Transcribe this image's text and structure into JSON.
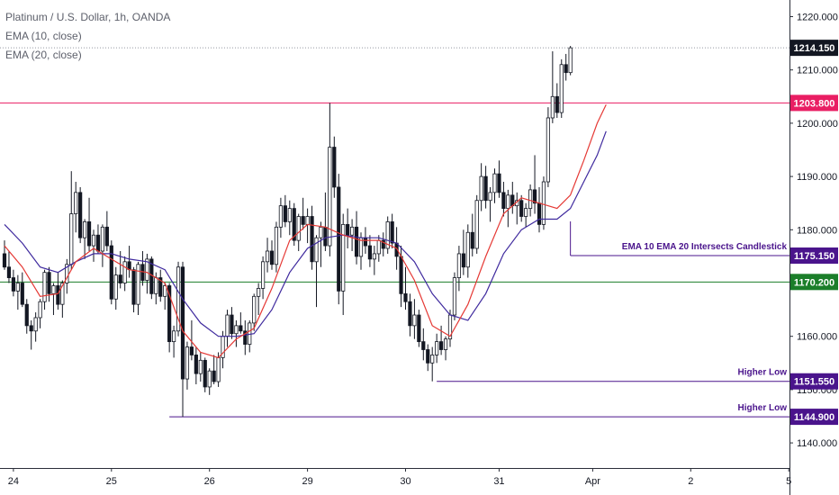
{
  "legend": {
    "symbol": "Platinum / U.S. Dollar, 1h, OANDA",
    "ema10": "EMA (10, close)",
    "ema20": "EMA (20, close)"
  },
  "colors": {
    "up": "#ffffff",
    "down": "#131722",
    "wick": "#131722",
    "ema10": "#e53935",
    "ema20": "#3f2a9e",
    "resistance": "#e91e63",
    "support": "#1b7e2a",
    "annotation": "#4a148c",
    "last": "#131722"
  },
  "chart_data": {
    "type": "candlestick",
    "symbol": "Platinum / U.S. Dollar",
    "interval": "1h",
    "source": "OANDA",
    "ylim": [
      1135,
      1225
    ],
    "y_ticks": [
      1140,
      1150,
      1160,
      1170,
      1180,
      1190,
      1200,
      1210,
      1220
    ],
    "y_tick_labels": [
      "1140.000",
      "1150.000",
      "1160.000",
      "1170.000",
      "1180.000",
      "1190.000",
      "1200.000",
      "1210.000",
      "1220.000"
    ],
    "x_ticks": [
      {
        "label": "24",
        "index": 2
      },
      {
        "label": "25",
        "index": 24
      },
      {
        "label": "26",
        "index": 46
      },
      {
        "label": "29",
        "index": 68
      },
      {
        "label": "30",
        "index": 90
      },
      {
        "label": "31",
        "index": 111
      },
      {
        "label": "Apr",
        "index": 132
      },
      {
        "label": "2",
        "index": 154
      },
      {
        "label": "5",
        "index": 176
      }
    ],
    "x_range": [
      -3,
      183
    ],
    "ohlc": [
      [
        1175.5,
        1178.0,
        1172.5,
        1173.0
      ],
      [
        1173.0,
        1176.0,
        1170.0,
        1171.0
      ],
      [
        1171.0,
        1172.5,
        1167.5,
        1168.5
      ],
      [
        1168.5,
        1171.5,
        1165.0,
        1170.0
      ],
      [
        1170.0,
        1172.0,
        1165.5,
        1166.0
      ],
      [
        1166.0,
        1167.0,
        1160.5,
        1162.0
      ],
      [
        1162.0,
        1163.0,
        1157.5,
        1161.0
      ],
      [
        1161.0,
        1164.5,
        1159.0,
        1163.5
      ],
      [
        1163.5,
        1167.0,
        1161.5,
        1166.5
      ],
      [
        1166.5,
        1172.5,
        1165.0,
        1172.0
      ],
      [
        1172.0,
        1173.0,
        1166.5,
        1168.0
      ],
      [
        1168.0,
        1170.0,
        1164.0,
        1169.5
      ],
      [
        1169.5,
        1172.0,
        1165.0,
        1166.0
      ],
      [
        1166.0,
        1170.5,
        1163.5,
        1170.0
      ],
      [
        1170.0,
        1174.5,
        1168.0,
        1173.5
      ],
      [
        1173.5,
        1191.0,
        1172.5,
        1183.0
      ],
      [
        1183.0,
        1189.0,
        1179.5,
        1187.0
      ],
      [
        1187.0,
        1188.0,
        1177.5,
        1178.5
      ],
      [
        1178.5,
        1182.0,
        1174.5,
        1181.5
      ],
      [
        1181.5,
        1186.0,
        1176.0,
        1177.0
      ],
      [
        1177.0,
        1180.0,
        1174.0,
        1179.0
      ],
      [
        1179.0,
        1181.0,
        1175.5,
        1176.0
      ],
      [
        1176.0,
        1181.0,
        1173.0,
        1180.5
      ],
      [
        1180.5,
        1183.5,
        1176.0,
        1177.0
      ],
      [
        1177.0,
        1178.0,
        1166.0,
        1167.0
      ],
      [
        1167.0,
        1173.0,
        1165.0,
        1171.5
      ],
      [
        1171.5,
        1176.0,
        1169.0,
        1170.0
      ],
      [
        1170.0,
        1175.0,
        1168.5,
        1174.0
      ],
      [
        1174.0,
        1177.0,
        1171.0,
        1172.5
      ],
      [
        1172.5,
        1173.0,
        1164.5,
        1166.0
      ],
      [
        1166.0,
        1174.0,
        1164.0,
        1173.5
      ],
      [
        1173.5,
        1176.0,
        1169.5,
        1170.5
      ],
      [
        1170.5,
        1175.5,
        1168.0,
        1174.5
      ],
      [
        1174.5,
        1175.0,
        1167.0,
        1168.0
      ],
      [
        1168.0,
        1172.0,
        1166.0,
        1171.0
      ],
      [
        1171.0,
        1172.5,
        1166.5,
        1167.5
      ],
      [
        1167.5,
        1170.0,
        1165.0,
        1169.5
      ],
      [
        1169.5,
        1170.0,
        1157.0,
        1159.0
      ],
      [
        1159.0,
        1162.0,
        1156.0,
        1161.0
      ],
      [
        1161.0,
        1174.0,
        1160.0,
        1173.0
      ],
      [
        1173.0,
        1174.0,
        1144.9,
        1152.0
      ],
      [
        1152.0,
        1159.0,
        1150.0,
        1158.0
      ],
      [
        1158.0,
        1163.0,
        1155.5,
        1156.5
      ],
      [
        1156.5,
        1158.0,
        1151.0,
        1153.0
      ],
      [
        1153.0,
        1157.0,
        1151.5,
        1155.5
      ],
      [
        1155.5,
        1156.0,
        1149.5,
        1150.5
      ],
      [
        1150.5,
        1154.0,
        1149.0,
        1153.5
      ],
      [
        1153.5,
        1156.5,
        1151.0,
        1151.5
      ],
      [
        1151.5,
        1157.0,
        1150.5,
        1156.0
      ],
      [
        1156.0,
        1161.0,
        1154.0,
        1160.0
      ],
      [
        1160.0,
        1165.0,
        1158.0,
        1164.0
      ],
      [
        1164.0,
        1165.5,
        1159.5,
        1160.5
      ],
      [
        1160.5,
        1163.0,
        1158.0,
        1162.0
      ],
      [
        1162.0,
        1164.5,
        1160.5,
        1161.0
      ],
      [
        1161.0,
        1163.0,
        1156.5,
        1158.5
      ],
      [
        1158.5,
        1163.0,
        1157.0,
        1162.5
      ],
      [
        1162.5,
        1168.0,
        1161.0,
        1167.5
      ],
      [
        1167.5,
        1170.0,
        1164.0,
        1169.0
      ],
      [
        1169.0,
        1175.0,
        1167.0,
        1174.0
      ],
      [
        1174.0,
        1178.5,
        1172.0,
        1176.0
      ],
      [
        1176.0,
        1178.0,
        1172.5,
        1173.5
      ],
      [
        1173.5,
        1181.5,
        1172.0,
        1180.5
      ],
      [
        1180.5,
        1186.0,
        1178.5,
        1184.5
      ],
      [
        1184.5,
        1186.5,
        1180.5,
        1181.5
      ],
      [
        1181.5,
        1185.5,
        1179.0,
        1184.0
      ],
      [
        1184.0,
        1185.0,
        1177.0,
        1178.0
      ],
      [
        1178.0,
        1183.0,
        1176.0,
        1182.5
      ],
      [
        1182.5,
        1186.0,
        1180.0,
        1181.0
      ],
      [
        1181.0,
        1184.0,
        1177.5,
        1182.5
      ],
      [
        1182.5,
        1184.5,
        1172.5,
        1174.0
      ],
      [
        1174.0,
        1179.0,
        1165.5,
        1178.5
      ],
      [
        1178.5,
        1181.5,
        1173.0,
        1180.5
      ],
      [
        1180.5,
        1187.0,
        1176.0,
        1177.0
      ],
      [
        1177.0,
        1203.8,
        1175.0,
        1195.5
      ],
      [
        1195.5,
        1197.5,
        1186.0,
        1188.0
      ],
      [
        1188.0,
        1190.5,
        1166.0,
        1168.5
      ],
      [
        1168.5,
        1183.0,
        1164.0,
        1181.0
      ],
      [
        1181.0,
        1184.0,
        1176.5,
        1179.0
      ],
      [
        1179.0,
        1182.0,
        1176.0,
        1180.5
      ],
      [
        1180.5,
        1183.5,
        1173.5,
        1175.0
      ],
      [
        1175.0,
        1179.5,
        1172.5,
        1178.5
      ],
      [
        1178.5,
        1180.5,
        1175.5,
        1177.0
      ],
      [
        1177.0,
        1179.0,
        1173.0,
        1174.5
      ],
      [
        1174.5,
        1177.0,
        1171.5,
        1175.5
      ],
      [
        1175.5,
        1179.0,
        1174.0,
        1178.0
      ],
      [
        1178.0,
        1179.5,
        1175.0,
        1176.5
      ],
      [
        1176.5,
        1182.5,
        1175.5,
        1181.5
      ],
      [
        1181.5,
        1183.0,
        1176.5,
        1177.5
      ],
      [
        1177.5,
        1180.5,
        1172.5,
        1175.0
      ],
      [
        1175.0,
        1177.0,
        1165.5,
        1168.0
      ],
      [
        1168.0,
        1173.0,
        1165.0,
        1166.5
      ],
      [
        1166.5,
        1168.0,
        1160.0,
        1162.0
      ],
      [
        1162.0,
        1167.0,
        1159.5,
        1164.0
      ],
      [
        1164.0,
        1165.0,
        1158.0,
        1159.0
      ],
      [
        1159.0,
        1161.5,
        1155.5,
        1157.5
      ],
      [
        1157.5,
        1158.5,
        1153.5,
        1155.0
      ],
      [
        1155.0,
        1158.0,
        1151.55,
        1156.5
      ],
      [
        1156.5,
        1160.5,
        1155.0,
        1159.0
      ],
      [
        1159.0,
        1162.0,
        1156.5,
        1157.5
      ],
      [
        1157.5,
        1160.0,
        1155.5,
        1159.5
      ],
      [
        1159.5,
        1165.0,
        1158.0,
        1164.0
      ],
      [
        1164.0,
        1172.0,
        1163.0,
        1171.0
      ],
      [
        1171.0,
        1177.0,
        1168.5,
        1175.5
      ],
      [
        1175.5,
        1180.0,
        1171.5,
        1173.0
      ],
      [
        1173.0,
        1181.0,
        1171.0,
        1179.5
      ],
      [
        1179.5,
        1183.0,
        1175.0,
        1176.5
      ],
      [
        1176.5,
        1186.5,
        1175.5,
        1185.5
      ],
      [
        1185.5,
        1192.5,
        1183.5,
        1190.0
      ],
      [
        1190.0,
        1192.0,
        1184.0,
        1185.5
      ],
      [
        1185.5,
        1188.0,
        1181.5,
        1187.0
      ],
      [
        1187.0,
        1191.5,
        1185.0,
        1190.5
      ],
      [
        1190.5,
        1193.0,
        1186.0,
        1187.0
      ],
      [
        1187.0,
        1189.0,
        1182.5,
        1184.0
      ],
      [
        1184.0,
        1187.5,
        1180.5,
        1186.5
      ],
      [
        1186.5,
        1189.0,
        1183.0,
        1184.5
      ],
      [
        1184.5,
        1187.0,
        1181.0,
        1185.5
      ],
      [
        1185.5,
        1186.5,
        1181.5,
        1182.5
      ],
      [
        1182.5,
        1185.0,
        1180.5,
        1184.0
      ],
      [
        1184.0,
        1188.5,
        1182.5,
        1187.5
      ],
      [
        1187.5,
        1194.0,
        1183.0,
        1185.0
      ],
      [
        1185.0,
        1188.0,
        1179.5,
        1181.0
      ],
      [
        1181.0,
        1190.0,
        1180.0,
        1189.0
      ],
      [
        1189.0,
        1203.0,
        1188.0,
        1201.0
      ],
      [
        1201.0,
        1213.5,
        1200.0,
        1205.0
      ],
      [
        1205.0,
        1207.5,
        1201.0,
        1202.0
      ],
      [
        1202.0,
        1212.0,
        1201.0,
        1211.0
      ],
      [
        1211.0,
        1213.0,
        1208.0,
        1209.5
      ],
      [
        1209.5,
        1214.5,
        1209.0,
        1214.15
      ]
    ],
    "ema10_points": [
      [
        0,
        1177.0
      ],
      [
        4,
        1173.0
      ],
      [
        8,
        1167.5
      ],
      [
        12,
        1168.0
      ],
      [
        16,
        1174.0
      ],
      [
        20,
        1176.5
      ],
      [
        24,
        1174.5
      ],
      [
        28,
        1172.5
      ],
      [
        32,
        1172.0
      ],
      [
        36,
        1170.0
      ],
      [
        40,
        1161.0
      ],
      [
        44,
        1157.0
      ],
      [
        48,
        1156.0
      ],
      [
        52,
        1159.5
      ],
      [
        56,
        1161.5
      ],
      [
        60,
        1169.0
      ],
      [
        64,
        1178.0
      ],
      [
        68,
        1181.0
      ],
      [
        72,
        1180.5
      ],
      [
        76,
        1179.0
      ],
      [
        80,
        1178.0
      ],
      [
        84,
        1178.0
      ],
      [
        88,
        1176.5
      ],
      [
        92,
        1170.5
      ],
      [
        96,
        1162.0
      ],
      [
        100,
        1160.0
      ],
      [
        104,
        1166.0
      ],
      [
        108,
        1175.0
      ],
      [
        112,
        1183.0
      ],
      [
        116,
        1186.0
      ],
      [
        120,
        1185.0
      ],
      [
        124,
        1184.0
      ],
      [
        127,
        1186.5
      ],
      [
        130,
        1193.0
      ],
      [
        133,
        1200.0
      ],
      [
        135,
        1203.5
      ]
    ],
    "ema20_points": [
      [
        0,
        1181.0
      ],
      [
        4,
        1177.5
      ],
      [
        8,
        1173.0
      ],
      [
        12,
        1172.0
      ],
      [
        16,
        1174.0
      ],
      [
        20,
        1175.5
      ],
      [
        24,
        1175.5
      ],
      [
        28,
        1174.5
      ],
      [
        32,
        1174.0
      ],
      [
        36,
        1172.5
      ],
      [
        40,
        1167.0
      ],
      [
        44,
        1162.5
      ],
      [
        48,
        1160.0
      ],
      [
        52,
        1160.0
      ],
      [
        56,
        1160.5
      ],
      [
        60,
        1165.0
      ],
      [
        64,
        1172.0
      ],
      [
        68,
        1176.5
      ],
      [
        72,
        1178.5
      ],
      [
        76,
        1179.0
      ],
      [
        80,
        1178.5
      ],
      [
        84,
        1178.5
      ],
      [
        88,
        1177.5
      ],
      [
        92,
        1174.0
      ],
      [
        96,
        1168.0
      ],
      [
        100,
        1164.0
      ],
      [
        104,
        1163.0
      ],
      [
        108,
        1168.0
      ],
      [
        112,
        1175.5
      ],
      [
        116,
        1180.0
      ],
      [
        120,
        1182.0
      ],
      [
        124,
        1182.0
      ],
      [
        127,
        1184.0
      ],
      [
        130,
        1189.0
      ],
      [
        133,
        1194.0
      ],
      [
        135,
        1198.5
      ]
    ],
    "levels": [
      {
        "name": "resistance",
        "price": 1203.8,
        "label": "1203.800",
        "from_index": -3,
        "to_index": 183
      },
      {
        "name": "support",
        "price": 1170.2,
        "label": "1170.200",
        "from_index": -3,
        "to_index": 183
      },
      {
        "name": "ema-cross",
        "price": 1175.15,
        "label": "1175.150",
        "from_index": 127,
        "to_index": 183,
        "text": "EMA 10 EMA 20 Intersects Candlestick"
      },
      {
        "name": "higher-low-1",
        "price": 1151.55,
        "label": "1151.550",
        "from_index": 97,
        "to_index": 183,
        "text": "Higher Low"
      },
      {
        "name": "higher-low-2",
        "price": 1144.9,
        "label": "1144.900",
        "from_index": 37,
        "to_index": 183,
        "text": "Higher Low"
      }
    ],
    "last_price": 1214.15,
    "last_price_label": "1214.150",
    "grid": false
  }
}
